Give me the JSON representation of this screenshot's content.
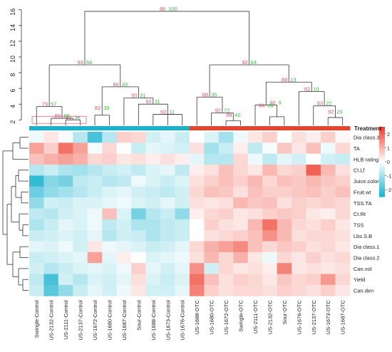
{
  "chart_data": {
    "type": "heatmap",
    "columns": [
      "Swingle-Control",
      "US-2132-Control",
      "US-2111-Control",
      "US-2137-Control",
      "US-1672-Control",
      "US-1680-Control",
      "US-1687-Control",
      "Sour-Control",
      "US-1688-Control",
      "US-1673-Control",
      "US-1676-Control",
      "US-1688-OTC",
      "US-1680-OTC",
      "US-1672-OTC",
      "Swingle-OTC",
      "US-2111-OTC",
      "US-2132-OTC",
      "Sour-OTC",
      "US-1676-OTC",
      "US-2137-OTC",
      "US-1673-OTC",
      "US-1687-OTC"
    ],
    "rows": [
      "Dia class.3",
      "TA",
      "HLB rating",
      "Ct.Lf",
      "Juice.color",
      "Fruit.wt",
      "TSS.TA",
      "Ct.Rt",
      "TSS",
      "Lbs.S.B",
      "Dia class.1",
      "Dia class.2",
      "Can.vol",
      "Yield",
      "Can.den"
    ],
    "values": [
      [
        -0.2,
        0.3,
        -0.1,
        -0.8,
        -2.0,
        -0.8,
        0.6,
        0.5,
        -0.5,
        -0.3,
        -0.6,
        0.0,
        -0.4,
        -1.0,
        -0.2,
        0.3,
        0.6,
        0.0,
        0.4,
        0.2,
        0.6,
        0.1
      ],
      [
        1.2,
        0.6,
        1.8,
        1.2,
        -0.1,
        0.5,
        0.0,
        -0.6,
        -0.3,
        -0.4,
        -0.5,
        0.4,
        -1.0,
        -0.6,
        0.2,
        -0.7,
        -0.1,
        0.7,
        0.3,
        0.8,
        -0.2,
        0.5
      ],
      [
        0.8,
        1.0,
        1.2,
        1.0,
        0.5,
        0.6,
        0.3,
        0.4,
        0.2,
        0.4,
        0.2,
        -0.3,
        -0.8,
        -0.8,
        0.5,
        -0.2,
        -0.7,
        -0.3,
        -0.5,
        0.0,
        -0.5,
        -0.6
      ],
      [
        -0.8,
        -0.6,
        -0.9,
        -1.0,
        -0.8,
        -0.6,
        -0.5,
        -0.7,
        -0.4,
        -0.3,
        -0.7,
        0.2,
        0.4,
        0.8,
        0.5,
        0.3,
        0.9,
        0.5,
        0.6,
        2.0,
        0.9,
        0.4
      ],
      [
        -2.2,
        -1.3,
        -1.5,
        -0.7,
        -0.6,
        -0.8,
        -0.7,
        -0.2,
        -0.4,
        -0.6,
        -0.4,
        0.4,
        0.6,
        0.8,
        0.6,
        0.9,
        0.5,
        0.8,
        0.7,
        0.9,
        0.7,
        0.6
      ],
      [
        -1.6,
        -1.2,
        -1.0,
        -0.8,
        -0.6,
        -0.4,
        -0.3,
        -0.5,
        -0.6,
        -0.7,
        -0.5,
        0.5,
        0.8,
        0.7,
        0.4,
        0.8,
        0.6,
        0.6,
        0.7,
        0.8,
        0.6,
        0.8
      ],
      [
        -1.2,
        -0.5,
        -0.6,
        -0.4,
        -0.4,
        -0.3,
        -0.2,
        -0.4,
        -0.5,
        -0.3,
        -0.5,
        0.4,
        0.3,
        0.4,
        0.9,
        0.7,
        0.8,
        0.4,
        0.6,
        0.5,
        0.6,
        0.5
      ],
      [
        -0.7,
        -0.8,
        -0.5,
        -0.4,
        -0.2,
        0.8,
        -0.4,
        -1.5,
        -0.8,
        -0.6,
        -1.2,
        0.2,
        0.5,
        0.6,
        0.3,
        0.4,
        0.6,
        0.7,
        0.6,
        0.3,
        0.2,
        0.5
      ],
      [
        -0.9,
        -0.6,
        -0.3,
        -0.4,
        -0.2,
        -0.7,
        -0.5,
        -0.9,
        -0.9,
        -0.7,
        -0.6,
        0.0,
        0.6,
        0.4,
        0.3,
        0.9,
        1.8,
        0.9,
        0.5,
        0.4,
        0.6,
        0.3
      ],
      [
        -0.6,
        -0.5,
        -0.4,
        -0.5,
        -0.3,
        -0.8,
        -0.5,
        -0.6,
        -0.9,
        -0.7,
        -0.6,
        0.0,
        0.4,
        0.5,
        0.6,
        0.8,
        1.4,
        0.9,
        0.4,
        0.5,
        0.5,
        0.4
      ],
      [
        -0.3,
        -0.4,
        -0.2,
        -0.5,
        0.3,
        -0.2,
        -0.3,
        -0.4,
        -0.6,
        -0.5,
        -0.3,
        0.5,
        1.0,
        1.2,
        1.5,
        0.8,
        0.5,
        0.7,
        0.6,
        0.4,
        0.5,
        0.3
      ],
      [
        -0.6,
        -0.5,
        -0.4,
        -0.3,
        1.2,
        -0.3,
        0.2,
        0.0,
        -0.4,
        -0.3,
        -0.2,
        0.4,
        0.9,
        0.5,
        1.0,
        0.3,
        -0.2,
        0.5,
        0.3,
        0.6,
        0.4,
        0.5
      ],
      [
        -0.5,
        -0.8,
        -0.6,
        -0.4,
        -0.3,
        -0.4,
        -0.2,
        0.6,
        -0.3,
        -0.5,
        -0.3,
        1.4,
        -0.5,
        0.5,
        0.3,
        0.4,
        0.2,
        1.6,
        0.3,
        0.4,
        0.3,
        0.4
      ],
      [
        -0.7,
        -2.0,
        -0.5,
        -0.8,
        -0.4,
        -0.5,
        -0.3,
        0.4,
        -0.4,
        -0.6,
        -0.4,
        1.8,
        0.8,
        0.4,
        0.6,
        0.5,
        0.3,
        0.7,
        0.5,
        0.6,
        1.3,
        0.5
      ],
      [
        -0.6,
        -1.8,
        -1.2,
        -0.6,
        -0.3,
        -0.5,
        -0.2,
        0.3,
        -0.5,
        -0.5,
        -0.3,
        1.6,
        0.6,
        0.4,
        0.5,
        0.5,
        0.4,
        0.6,
        0.5,
        0.4,
        0.6,
        0.3
      ]
    ],
    "treatment_label": "Treatment",
    "treatment_groups": [
      "Control",
      "Control",
      "Control",
      "Control",
      "Control",
      "Control",
      "Control",
      "Control",
      "Control",
      "Control",
      "Control",
      "OTC",
      "OTC",
      "OTC",
      "OTC",
      "OTC",
      "OTC",
      "OTC",
      "OTC",
      "OTC",
      "OTC",
      "OTC"
    ],
    "treatment_colors": {
      "Control": "#16b4cf",
      "OTC": "#e8432d"
    },
    "color_scale": {
      "low": "#1ab3cf",
      "mid": "#ffffff",
      "high": "#ee3b2a",
      "min": -2.5,
      "max": 2.5
    },
    "colorbar_ticks": [
      2,
      1,
      0,
      -1,
      -2
    ],
    "dendrogram_axis": {
      "ticks": [
        2,
        4,
        6,
        8,
        10,
        12,
        14,
        16
      ],
      "ylim": [
        1.3,
        16.7
      ]
    },
    "dendrogram_labels": [
      {
        "height": 15.8,
        "au": "86",
        "bp": "100"
      },
      {
        "height": 9.0,
        "au": "93",
        "bp": "64"
      },
      {
        "height": 9.0,
        "au": "92",
        "bp": "64"
      },
      {
        "height": 3.7,
        "au": "79",
        "bp": "57"
      },
      {
        "height": 2.2,
        "au": "89",
        "bp": "88"
      },
      {
        "height": 6.2,
        "au": "86",
        "bp": "33"
      },
      {
        "height": 4.8,
        "au": "90",
        "bp": "31"
      },
      {
        "height": 4.0,
        "au": "92",
        "bp": "11"
      },
      {
        "height": 2.7,
        "au": "92",
        "bp": "11"
      },
      {
        "height": 3.2,
        "au": "82",
        "bp": "35"
      },
      {
        "height": 2.0,
        "au": "93",
        "bp": "36"
      },
      {
        "height": 4.9,
        "au": "88",
        "bp": "35"
      },
      {
        "height": 2.9,
        "au": "92",
        "bp": "72"
      },
      {
        "height": 6.8,
        "au": "88",
        "bp": "13"
      },
      {
        "height": 3.5,
        "au": "84",
        "bp": "63"
      },
      {
        "height": 3.9,
        "au": "90",
        "bp": "9"
      },
      {
        "height": 5.6,
        "au": "82",
        "bp": "10"
      },
      {
        "height": 3.8,
        "au": "93",
        "bp": "22"
      },
      {
        "height": 2.7,
        "au": "92",
        "bp": "29"
      },
      {
        "height": 2.3,
        "au": "99",
        "bp": "42"
      }
    ]
  }
}
